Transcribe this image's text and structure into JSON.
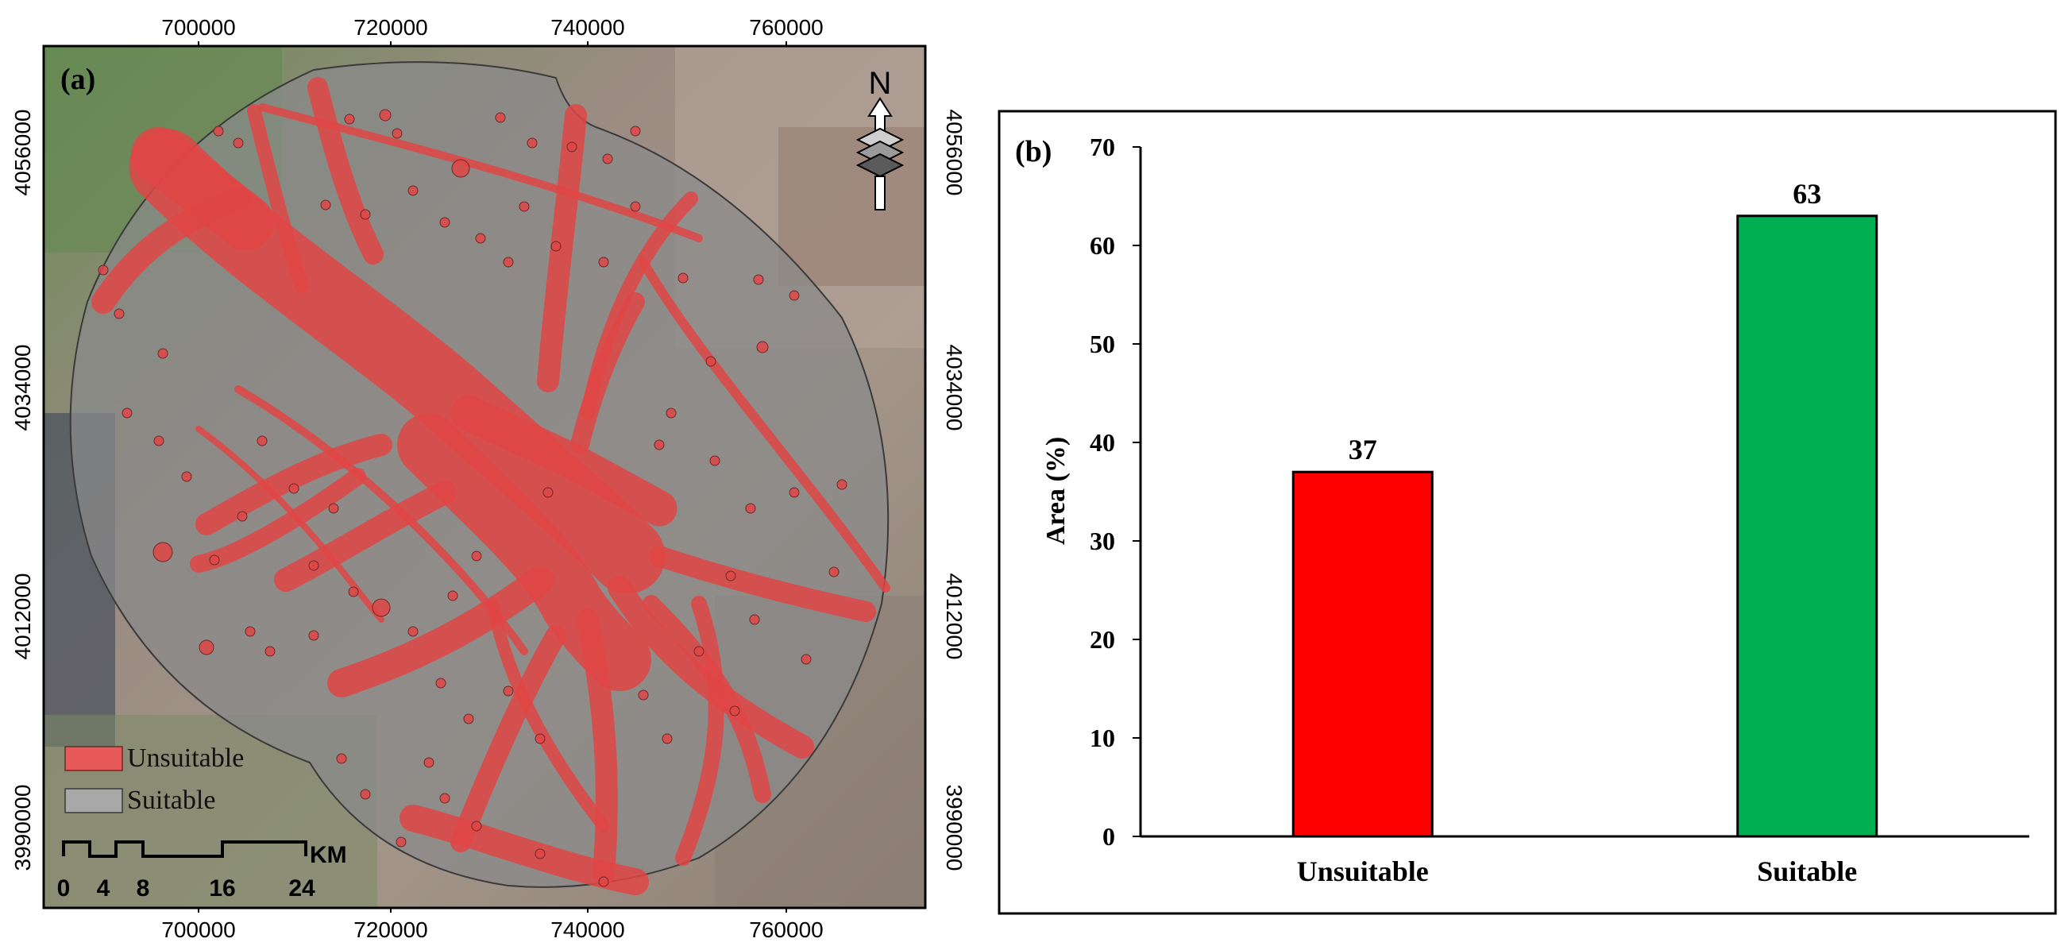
{
  "map": {
    "panel_label": "(a)",
    "x_ticks": [
      "700000",
      "720000",
      "740000",
      "760000"
    ],
    "y_ticks": [
      "4056000",
      "4034000",
      "4012000",
      "3990000"
    ],
    "north_label": "N",
    "legend": [
      {
        "name": "Unsuitable",
        "color": "#e85a5a"
      },
      {
        "name": "Suitable",
        "color": "#a8a8a8"
      }
    ],
    "scale_bar": {
      "unit": "KM",
      "ticks": [
        "0",
        "4",
        "8",
        "16",
        "24"
      ]
    },
    "colors": {
      "unsuitable": "#e04545",
      "suitable": "#8a8a8a"
    }
  },
  "chart_data": {
    "type": "bar",
    "panel_label": "(b)",
    "categories": [
      "Unsuitable",
      "Suitable"
    ],
    "values": [
      37,
      63
    ],
    "data_labels": [
      "37",
      "63"
    ],
    "colors": [
      "#ff0000",
      "#00b050"
    ],
    "ylabel": "Area (%)",
    "ylim": [
      0,
      70
    ],
    "yticks": [
      0,
      10,
      20,
      30,
      40,
      50,
      60,
      70
    ],
    "grid": false,
    "legend": "none"
  }
}
